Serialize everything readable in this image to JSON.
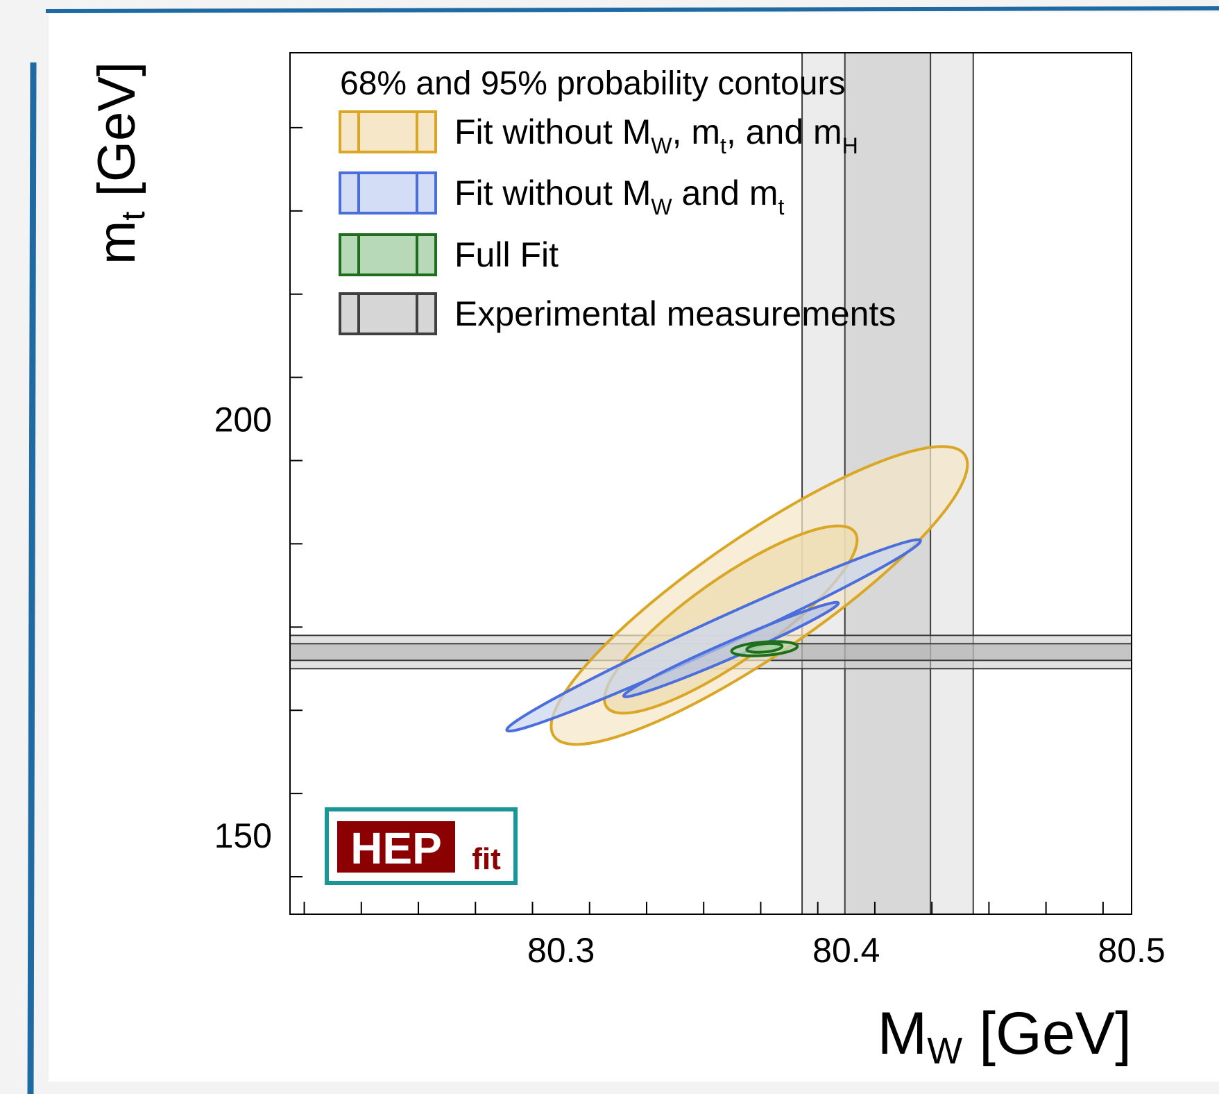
{
  "chart_data": {
    "type": "contour",
    "xlabel": {
      "main": "M",
      "sub": "W",
      "unit": " [GeV]"
    },
    "ylabel": {
      "main": "m",
      "sub": "t",
      "unit": " [GeV]"
    },
    "xlim": [
      80.205,
      80.5
    ],
    "ylim": [
      140.5,
      244
    ],
    "x_ticks": [
      "80.3",
      "80.4",
      "80.5"
    ],
    "y_ticks": [
      "150",
      "200"
    ],
    "legend_title": "68% and 95% probability contours",
    "legend": [
      {
        "id": "no-mw-mt-mh",
        "parts": [
          [
            "Fit without M",
            ""
          ],
          [
            "W",
            "sub"
          ],
          [
            ", m",
            ""
          ],
          [
            "t",
            "sub"
          ],
          [
            ", and m",
            ""
          ],
          [
            "H",
            "sub"
          ]
        ],
        "stroke": "#d9a626",
        "fill": "#f5e7c7"
      },
      {
        "id": "no-mw-mt",
        "parts": [
          [
            "Fit without M",
            ""
          ],
          [
            "W",
            "sub"
          ],
          [
            " and m",
            ""
          ],
          [
            "t",
            "sub"
          ]
        ],
        "stroke": "#4a6fdd",
        "fill": "#d3ddf5"
      },
      {
        "id": "full",
        "parts": [
          [
            "Full Fit",
            ""
          ]
        ],
        "stroke": "#1e6e1e",
        "fill": "#b7d9b7"
      },
      {
        "id": "experimental",
        "parts": [
          [
            "Experimental measurements",
            ""
          ]
        ],
        "stroke": "#404040",
        "fill": "#d6d6d6"
      }
    ],
    "experimental": {
      "mw": {
        "center": 80.4145,
        "sigma1": 0.015,
        "sigma2": 0.03
      },
      "mt": {
        "center": 172.0,
        "sigma1": 1.0,
        "sigma2": 2.0
      }
    },
    "series": [
      {
        "name": "Fit without M_W, m_t, and m_H",
        "color": "#d9a626",
        "fill": "#f5e7c7",
        "fill68": "#eedcae",
        "ellipses": {
          "95": {
            "center": [
              80.3695,
              178.8
            ],
            "axis_end": [
              80.4415,
              195.7
            ],
            "minor_end": [
              80.357,
              184.5
            ]
          },
          "68": {
            "center": [
              80.3595,
              175.9
            ],
            "axis_end": [
              80.403,
              186.4
            ],
            "minor_end": [
              80.3515,
              180.0
            ]
          }
        }
      },
      {
        "name": "Fit without M_W and m_t",
        "color": "#4a6fdd",
        "fill": "#cbd5f0",
        "fill68": "#b4c0e3",
        "ellipses": {
          "95": {
            "center": [
              80.3535,
              174.0
            ],
            "axis_end": [
              80.426,
              185.4
            ],
            "minor_end": [
              80.3515,
              175.5
            ]
          },
          "68": {
            "center": [
              80.3596,
              172.3
            ],
            "axis_end": [
              80.3972,
              177.9
            ],
            "minor_end": [
              80.3584,
              173.2
            ]
          }
        }
      },
      {
        "name": "Full Fit",
        "color": "#1e6e1e",
        "fill": "#b7d9b7",
        "fill68": "#9ccc9c",
        "ellipses": {
          "95": {
            "center": [
              80.3713,
              172.4
            ],
            "axis_end": [
              80.3828,
              172.7
            ],
            "minor_end": [
              80.371,
              173.2
            ]
          },
          "68": {
            "center": [
              80.3713,
              172.5
            ],
            "axis_end": [
              80.3775,
              172.7
            ],
            "minor_end": [
              80.3712,
              173.0
            ]
          }
        }
      }
    ]
  },
  "logo": {
    "text": "HEP",
    "sub": "fit",
    "box_color": "#8b0000",
    "border_color": "#1a9696"
  }
}
